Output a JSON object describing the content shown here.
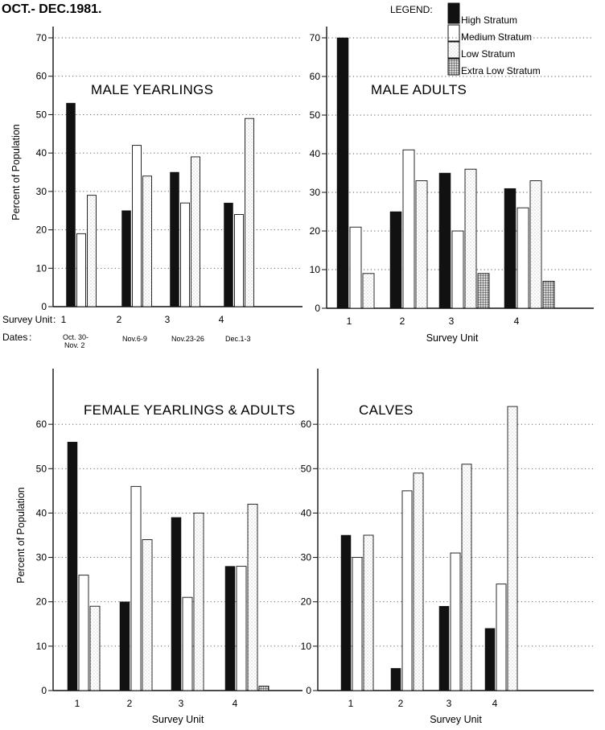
{
  "header": {
    "text": "OCT.- DEC.1981."
  },
  "legend": {
    "title": "LEGEND:",
    "items": [
      {
        "label": "High Stratum",
        "color": "#111111"
      },
      {
        "label": "Medium Stratum",
        "color": "#ffffff"
      },
      {
        "label": "Low Stratum",
        "color": "#ffffff"
      },
      {
        "label": "Extra Low Stratum",
        "color": "#888888"
      }
    ]
  },
  "survey_unit_prefix": "Survey Unit",
  "dates_prefix": "Dates",
  "dates": [
    "Oct. 30- Nov. 2",
    "Nov.6-9",
    "Nov.23-26",
    "Dec.1-3"
  ],
  "chart_data": [
    {
      "type": "bar",
      "title": "MALE YEARLINGS",
      "ylabel": "Percent of Population",
      "xlabel": "",
      "categories": [
        "1",
        "2",
        "3",
        "4"
      ],
      "ylim": [
        0,
        70
      ],
      "yticks": [
        0,
        10,
        20,
        30,
        40,
        50,
        60,
        70
      ],
      "series": [
        {
          "name": "High Stratum",
          "values": [
            53,
            25,
            35,
            27
          ]
        },
        {
          "name": "Medium Stratum",
          "values": [
            19,
            42,
            27,
            24
          ]
        },
        {
          "name": "Low Stratum",
          "values": [
            29,
            34,
            39,
            49
          ]
        },
        {
          "name": "Extra Low Stratum",
          "values": [
            null,
            null,
            null,
            null
          ]
        }
      ]
    },
    {
      "type": "bar",
      "title": "MALE ADULTS",
      "ylabel": "",
      "xlabel": "Survey Unit",
      "categories": [
        "1",
        "2",
        "3",
        "4"
      ],
      "ylim": [
        0,
        70
      ],
      "yticks": [
        0,
        10,
        20,
        30,
        40,
        50,
        60,
        70
      ],
      "series": [
        {
          "name": "High Stratum",
          "values": [
            70,
            25,
            35,
            31
          ]
        },
        {
          "name": "Medium Stratum",
          "values": [
            21,
            41,
            20,
            26
          ]
        },
        {
          "name": "Low Stratum",
          "values": [
            9,
            33,
            36,
            33
          ]
        },
        {
          "name": "Extra Low Stratum",
          "values": [
            null,
            null,
            9,
            7
          ]
        }
      ]
    },
    {
      "type": "bar",
      "title": "FEMALE YEARLINGS & ADULTS",
      "ylabel": "Percent of Population",
      "xlabel": "Survey Unit",
      "categories": [
        "1",
        "2",
        "3",
        "4"
      ],
      "ylim": [
        0,
        70
      ],
      "yticks": [
        0,
        10,
        20,
        30,
        40,
        50,
        60
      ],
      "series": [
        {
          "name": "High Stratum",
          "values": [
            56,
            20,
            39,
            28
          ]
        },
        {
          "name": "Medium Stratum",
          "values": [
            26,
            46,
            21,
            28
          ]
        },
        {
          "name": "Low Stratum",
          "values": [
            19,
            34,
            40,
            42
          ]
        },
        {
          "name": "Extra Low Stratum",
          "values": [
            null,
            null,
            null,
            1
          ]
        }
      ]
    },
    {
      "type": "bar",
      "title": "CALVES",
      "ylabel": "",
      "xlabel": "Survey Unit",
      "categories": [
        "1",
        "2",
        "3",
        "4"
      ],
      "ylim": [
        0,
        70
      ],
      "yticks": [
        0,
        10,
        20,
        30,
        40,
        50,
        60
      ],
      "series": [
        {
          "name": "High Stratum",
          "values": [
            35,
            5,
            19,
            14
          ]
        },
        {
          "name": "Medium Stratum",
          "values": [
            30,
            45,
            31,
            24
          ]
        },
        {
          "name": "Low Stratum",
          "values": [
            35,
            49,
            51,
            64
          ]
        },
        {
          "name": "Extra Low Stratum",
          "values": [
            null,
            null,
            null,
            null
          ]
        }
      ]
    }
  ]
}
